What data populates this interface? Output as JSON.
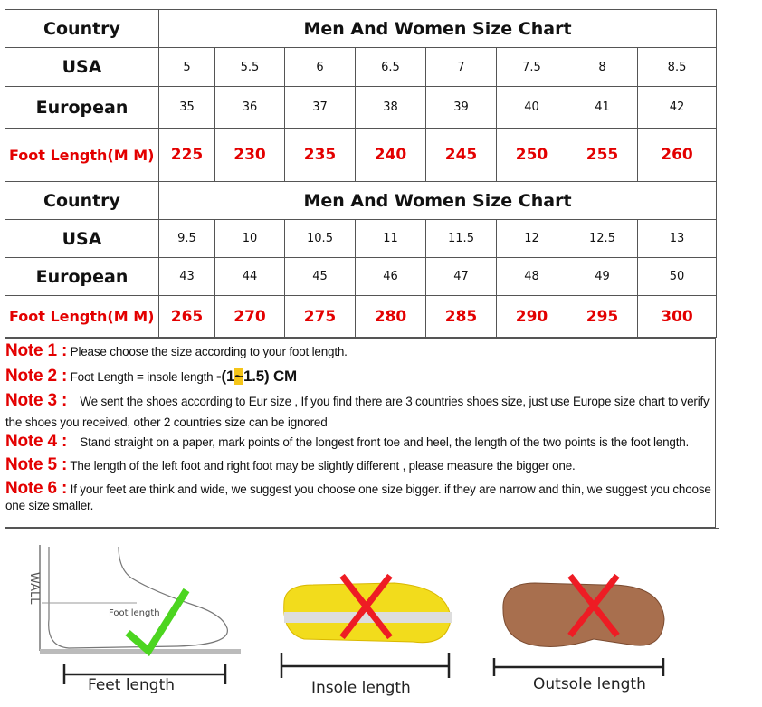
{
  "tables": [
    {
      "header": {
        "country": "Country",
        "title": "Men And Women Size Chart"
      },
      "rows": [
        {
          "label": "USA",
          "values": [
            "5",
            "5.5",
            "6",
            "6.5",
            "7",
            "7.5",
            "8",
            "8.5"
          ]
        },
        {
          "label": "European",
          "values": [
            "35",
            "36",
            "37",
            "38",
            "39",
            "40",
            "41",
            "42"
          ]
        },
        {
          "label": "Foot Length(M M)",
          "values": [
            "225",
            "230",
            "235",
            "240",
            "245",
            "250",
            "255",
            "260"
          ]
        }
      ]
    },
    {
      "header": {
        "country": "Country",
        "title": "Men And Women Size Chart"
      },
      "rows": [
        {
          "label": "USA",
          "values": [
            "9.5",
            "10",
            "10.5",
            "11",
            "11.5",
            "12",
            "12.5",
            "13"
          ]
        },
        {
          "label": "European",
          "values": [
            "43",
            "44",
            "45",
            "46",
            "47",
            "48",
            "49",
            "50"
          ]
        },
        {
          "label": "Foot Length(M M)",
          "values": [
            "265",
            "270",
            "275",
            "280",
            "285",
            "290",
            "295",
            "300"
          ]
        }
      ]
    }
  ],
  "notes": [
    {
      "label": "Note 1 :",
      "text": "Please choose the size according to your foot length."
    },
    {
      "label": "Note 2 :",
      "text": "Foot Length = insole length ",
      "formula_a": " -(1",
      "formula_tilde": "~",
      "formula_b": "1.5) CM"
    },
    {
      "label": "Note 3 :",
      "text": "   We sent the shoes according to Eur size , If you find there are 3 countries shoes size, just use Europe size chart to verify the shoes you received, other 2 countries size can be ignored"
    },
    {
      "label": "Note 4 :",
      "text": "   Stand straight on a paper, mark points of the longest front toe and heel, the length of the two points is the foot length."
    },
    {
      "label": "Note 5 :",
      "text": "The length of the left foot and right foot may be slightly different , please measure the bigger one."
    },
    {
      "label": "Note 6 :",
      "text": "If your feet are think and wide, we suggest you choose one size bigger. if they are narrow and thin, we suggest you choose one size smaller."
    }
  ],
  "illustrations": {
    "wall_label": "WALL",
    "foot_label": "Foot length",
    "captions": [
      "Feet length",
      "Insole length",
      "Outsole length"
    ]
  },
  "colors": {
    "note_red": "#e30000",
    "highlight": "#f5c518",
    "check_green": "#4cd520",
    "cross_red": "#ee1c24"
  }
}
